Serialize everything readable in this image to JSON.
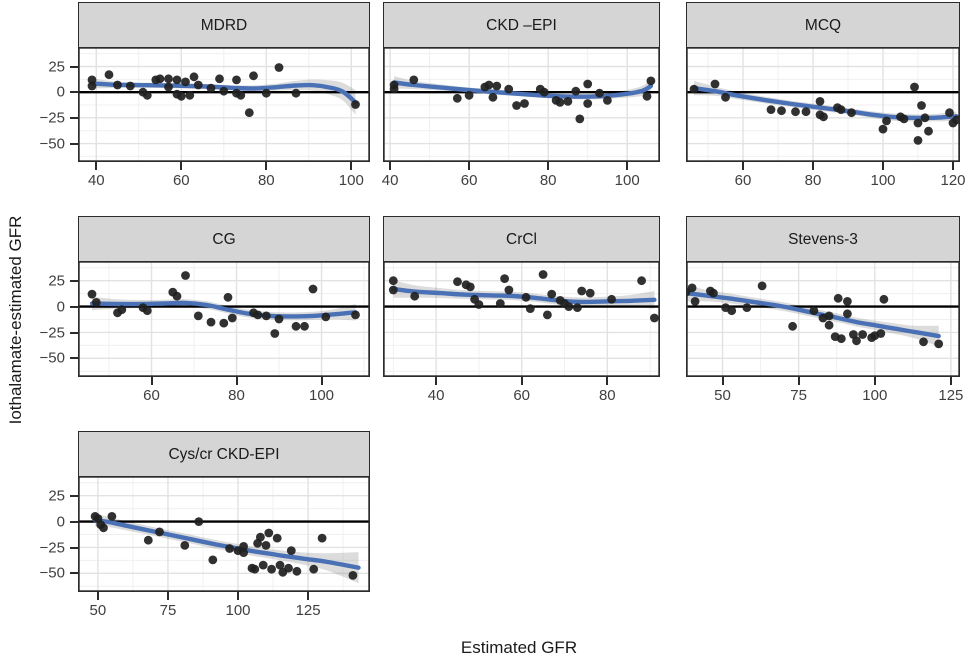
{
  "figure": {
    "x_axis_label": "Estimated GFR",
    "y_axis_label": "Iothalamate-estimated GFR"
  },
  "styles": {
    "smooth_color": "#4a71b5",
    "ribbon_color": "#808080",
    "ribbon_opacity": 0.28,
    "point_color": "#1f1f1f",
    "zero_line_color": "#000000",
    "panel_border_color": "#2b2b2b",
    "header_bg": "#d5d5d5",
    "grid_major_color": "#e2e2e2",
    "grid_minor_color": "#f0f0f0",
    "tick_text_color": "#404040"
  },
  "chart_data": {
    "type": "scatter",
    "title": "",
    "xlabel": "Estimated GFR",
    "ylabel": "Iothalamate-estimated GFR",
    "facet": "equation",
    "grid": true,
    "legend": "none",
    "ylim": [
      -68,
      44
    ],
    "yticks": [
      25,
      0,
      -25,
      -50
    ],
    "zero_reference_line": 0,
    "panels": [
      {
        "title": "MDRD",
        "xlim": [
          35.7,
          104.4
        ],
        "xticks": [
          40,
          60,
          80,
          100
        ],
        "points": [
          [
            39,
            12
          ],
          [
            39,
            6
          ],
          [
            43,
            17
          ],
          [
            45,
            7
          ],
          [
            48,
            6
          ],
          [
            51,
            0
          ],
          [
            52,
            -3
          ],
          [
            54,
            12
          ],
          [
            55,
            13
          ],
          [
            57,
            13
          ],
          [
            57,
            5
          ],
          [
            59,
            12
          ],
          [
            59,
            -2
          ],
          [
            60,
            -4
          ],
          [
            61,
            10
          ],
          [
            62,
            -3
          ],
          [
            63,
            15
          ],
          [
            64,
            7
          ],
          [
            67,
            4
          ],
          [
            69,
            13
          ],
          [
            70,
            1
          ],
          [
            73,
            12
          ],
          [
            73,
            -1
          ],
          [
            74,
            -3
          ],
          [
            76,
            -20
          ],
          [
            77,
            16
          ],
          [
            80,
            -1
          ],
          [
            83,
            24
          ],
          [
            87,
            -1
          ],
          [
            101,
            -12
          ]
        ],
        "smooth": [
          [
            39,
            8.5,
            5
          ],
          [
            45,
            7.2,
            3
          ],
          [
            52,
            6.8,
            2.5
          ],
          [
            59,
            6.3,
            2.4
          ],
          [
            66,
            5.5,
            2.4
          ],
          [
            72,
            4.2,
            2.6
          ],
          [
            77,
            3.6,
            3
          ],
          [
            82,
            4.8,
            3.4
          ],
          [
            87,
            6.5,
            4.5
          ],
          [
            91,
            6.8,
            5.5
          ],
          [
            95,
            4.5,
            7
          ],
          [
            98,
            0.5,
            8.5
          ],
          [
            101,
            -10,
            12
          ]
        ]
      },
      {
        "title": "CKD –EPI",
        "xlim": [
          38.2,
          108.3
        ],
        "xticks": [
          40,
          60,
          80,
          100
        ],
        "points": [
          [
            41,
            7
          ],
          [
            41,
            3
          ],
          [
            46,
            12
          ],
          [
            57,
            -6
          ],
          [
            60,
            -3
          ],
          [
            64,
            5
          ],
          [
            65,
            7
          ],
          [
            66,
            -5
          ],
          [
            67,
            6
          ],
          [
            70,
            3
          ],
          [
            72,
            -13
          ],
          [
            74,
            -11
          ],
          [
            78,
            3
          ],
          [
            79,
            0
          ],
          [
            82,
            -8
          ],
          [
            83,
            -10
          ],
          [
            85,
            -9
          ],
          [
            87,
            1
          ],
          [
            88,
            -26
          ],
          [
            90,
            8
          ],
          [
            90,
            -11
          ],
          [
            93,
            -1
          ],
          [
            95,
            -8
          ],
          [
            105,
            -4
          ],
          [
            106,
            11
          ]
        ],
        "smooth": [
          [
            41,
            9.5,
            6
          ],
          [
            46,
            7,
            4
          ],
          [
            53,
            4.5,
            3
          ],
          [
            60,
            2,
            2.6
          ],
          [
            67,
            0,
            2.5
          ],
          [
            74,
            -2,
            2.4
          ],
          [
            80,
            -3.5,
            2.4
          ],
          [
            86,
            -4.3,
            2.4
          ],
          [
            91,
            -4.3,
            2.6
          ],
          [
            96,
            -3.3,
            3
          ],
          [
            101,
            -1,
            4
          ],
          [
            104,
            1.5,
            5
          ],
          [
            106,
            6,
            6.5
          ]
        ]
      },
      {
        "title": "MCQ",
        "xlim": [
          43.7,
          122
        ],
        "xticks": [
          60,
          80,
          100,
          120
        ],
        "points": [
          [
            46,
            3
          ],
          [
            52,
            8
          ],
          [
            55,
            -5
          ],
          [
            68,
            -17
          ],
          [
            71,
            -18
          ],
          [
            75,
            -19
          ],
          [
            78,
            -19
          ],
          [
            82,
            -9
          ],
          [
            82,
            -22
          ],
          [
            83,
            -24
          ],
          [
            87,
            -15
          ],
          [
            88,
            -17
          ],
          [
            91,
            -20
          ],
          [
            100,
            -36
          ],
          [
            101,
            -28
          ],
          [
            105,
            -24
          ],
          [
            106,
            -26
          ],
          [
            109,
            5
          ],
          [
            110,
            -30
          ],
          [
            110,
            -47
          ],
          [
            111,
            -13
          ],
          [
            112,
            -25
          ],
          [
            113,
            -38
          ],
          [
            119,
            -20
          ],
          [
            120,
            -30
          ],
          [
            121,
            -27
          ]
        ],
        "smooth": [
          [
            46,
            4,
            7
          ],
          [
            52,
            1,
            4.5
          ],
          [
            58,
            -3,
            3.6
          ],
          [
            66,
            -7.5,
            3.2
          ],
          [
            74,
            -11.5,
            3
          ],
          [
            82,
            -15,
            3
          ],
          [
            90,
            -18.5,
            3
          ],
          [
            96,
            -21.5,
            3.2
          ],
          [
            102,
            -24,
            3.5
          ],
          [
            108,
            -25,
            3.6
          ],
          [
            114,
            -25,
            3.6
          ],
          [
            121,
            -23.5,
            4.5
          ]
        ]
      },
      {
        "title": "CG",
        "xlim": [
          42.7,
          111.4
        ],
        "xticks": [
          60,
          80,
          100
        ],
        "points": [
          [
            46,
            12
          ],
          [
            47,
            4
          ],
          [
            52,
            -6
          ],
          [
            53,
            -3
          ],
          [
            58,
            -1
          ],
          [
            59,
            -4
          ],
          [
            65,
            14
          ],
          [
            66,
            10
          ],
          [
            68,
            30
          ],
          [
            71,
            -9
          ],
          [
            74,
            -15
          ],
          [
            77,
            -16
          ],
          [
            78,
            9
          ],
          [
            79,
            -11
          ],
          [
            84,
            -6
          ],
          [
            85,
            -8
          ],
          [
            87,
            -9
          ],
          [
            89,
            -26
          ],
          [
            90,
            -12
          ],
          [
            94,
            -19
          ],
          [
            96,
            -19
          ],
          [
            98,
            17
          ],
          [
            101,
            -10
          ],
          [
            108,
            -8
          ]
        ],
        "smooth": [
          [
            46,
            3,
            6.5
          ],
          [
            52,
            2.5,
            4.5
          ],
          [
            58,
            2.5,
            3.8
          ],
          [
            63,
            3,
            3.6
          ],
          [
            68,
            3.5,
            3.6
          ],
          [
            73,
            1.5,
            3.6
          ],
          [
            78,
            -3,
            3.6
          ],
          [
            83,
            -7,
            3.8
          ],
          [
            88,
            -9,
            3.8
          ],
          [
            93,
            -9.5,
            3.8
          ],
          [
            98,
            -9,
            4
          ],
          [
            103,
            -7.5,
            5
          ],
          [
            108,
            -5.5,
            8
          ]
        ]
      },
      {
        "title": "CrCl",
        "xlim": [
          27.6,
          92.3
        ],
        "xticks": [
          40,
          60,
          80
        ],
        "points": [
          [
            30,
            25
          ],
          [
            30,
            16
          ],
          [
            35,
            10
          ],
          [
            45,
            24
          ],
          [
            47,
            21
          ],
          [
            48,
            19
          ],
          [
            49,
            7
          ],
          [
            50,
            2
          ],
          [
            55,
            3
          ],
          [
            56,
            27
          ],
          [
            57,
            16
          ],
          [
            61,
            9
          ],
          [
            62,
            -2
          ],
          [
            65,
            31
          ],
          [
            66,
            -8
          ],
          [
            67,
            12
          ],
          [
            69,
            6
          ],
          [
            70,
            3
          ],
          [
            71,
            0
          ],
          [
            73,
            -1
          ],
          [
            74,
            15
          ],
          [
            76,
            13
          ],
          [
            81,
            7
          ],
          [
            88,
            25
          ],
          [
            91,
            -11
          ]
        ],
        "smooth": [
          [
            30,
            17,
            8.5
          ],
          [
            35,
            14.5,
            6
          ],
          [
            41,
            13,
            4.8
          ],
          [
            47,
            11.5,
            4.2
          ],
          [
            53,
            10.8,
            4
          ],
          [
            58,
            10.2,
            4
          ],
          [
            63,
            8.5,
            4
          ],
          [
            67,
            6.5,
            4
          ],
          [
            71,
            5,
            4.2
          ],
          [
            75,
            4.5,
            4.3
          ],
          [
            80,
            5,
            4.6
          ],
          [
            85,
            5.5,
            5.5
          ],
          [
            91,
            6.5,
            8.5
          ]
        ]
      },
      {
        "title": "Stevens-3",
        "xlim": [
          38,
          128
        ],
        "xticks": [
          50,
          75,
          100,
          125
        ],
        "points": [
          [
            38,
            14
          ],
          [
            40,
            18
          ],
          [
            41,
            5
          ],
          [
            46,
            15
          ],
          [
            47,
            13
          ],
          [
            51,
            -1
          ],
          [
            53,
            -4
          ],
          [
            58,
            -1
          ],
          [
            63,
            20
          ],
          [
            73,
            -19
          ],
          [
            80,
            -4
          ],
          [
            83,
            -11
          ],
          [
            85,
            -9
          ],
          [
            85,
            -18
          ],
          [
            87,
            -29
          ],
          [
            88,
            8
          ],
          [
            89,
            -31
          ],
          [
            91,
            5
          ],
          [
            91,
            -7
          ],
          [
            93,
            -27
          ],
          [
            94,
            -33
          ],
          [
            96,
            -27
          ],
          [
            99,
            -30
          ],
          [
            100,
            -28
          ],
          [
            102,
            -26
          ],
          [
            103,
            7
          ],
          [
            116,
            -34
          ],
          [
            121,
            -36
          ]
        ],
        "smooth": [
          [
            38,
            13,
            8
          ],
          [
            45,
            10.5,
            5.5
          ],
          [
            52,
            8,
            4.8
          ],
          [
            60,
            4.5,
            4.3
          ],
          [
            68,
            1,
            4.2
          ],
          [
            75,
            -3,
            4.2
          ],
          [
            82,
            -7.5,
            4.2
          ],
          [
            88,
            -11,
            4.2
          ],
          [
            94,
            -15,
            4.3
          ],
          [
            100,
            -18,
            4.5
          ],
          [
            106,
            -21,
            5
          ],
          [
            113,
            -24.5,
            6
          ],
          [
            121,
            -28.5,
            10
          ]
        ]
      },
      {
        "title": "Cys/cr CKD-EPI",
        "xlim": [
          42.9,
          147.1
        ],
        "xticks": [
          50,
          75,
          100,
          125
        ],
        "points": [
          [
            49,
            5
          ],
          [
            50,
            3
          ],
          [
            51,
            -3
          ],
          [
            52,
            -6
          ],
          [
            55,
            5
          ],
          [
            68,
            -18
          ],
          [
            72,
            -10
          ],
          [
            81,
            -23
          ],
          [
            86,
            0
          ],
          [
            91,
            -37
          ],
          [
            97,
            -26
          ],
          [
            100,
            -28
          ],
          [
            102,
            -24
          ],
          [
            102,
            -30
          ],
          [
            105,
            -45
          ],
          [
            106,
            -46
          ],
          [
            107,
            -21
          ],
          [
            108,
            -15
          ],
          [
            109,
            -42
          ],
          [
            110,
            -23
          ],
          [
            111,
            -11
          ],
          [
            112,
            -46
          ],
          [
            114,
            -16
          ],
          [
            115,
            -42
          ],
          [
            116,
            -49
          ],
          [
            118,
            -45
          ],
          [
            119,
            -28
          ],
          [
            121,
            -48
          ],
          [
            127,
            -46
          ],
          [
            130,
            -16
          ],
          [
            141,
            -52
          ]
        ],
        "smooth": [
          [
            49,
            1.5,
            6
          ],
          [
            54,
            -0.5,
            4.8
          ],
          [
            60,
            -4,
            4.4
          ],
          [
            68,
            -8.5,
            4.2
          ],
          [
            76,
            -13,
            4.2
          ],
          [
            84,
            -17.5,
            4.2
          ],
          [
            92,
            -22,
            4.2
          ],
          [
            98,
            -25,
            4.3
          ],
          [
            104,
            -28,
            4.5
          ],
          [
            110,
            -30.5,
            4.6
          ],
          [
            116,
            -33,
            5
          ],
          [
            124,
            -36,
            6
          ],
          [
            132,
            -39,
            8.5
          ],
          [
            143,
            -44.5,
            15
          ]
        ]
      }
    ]
  }
}
